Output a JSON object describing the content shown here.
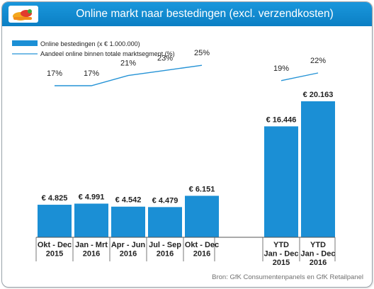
{
  "title": "Online markt naar bestedingen (excl. verzendkosten)",
  "source": "Bron: GfK Consumentenpanels en GfK Retailpanel",
  "colors": {
    "header": "#1586cf",
    "bar": "#1b8fd5",
    "line": "#2593d6",
    "text": "#222222"
  },
  "icons": {
    "logo": "shopping-basket-logo"
  },
  "chart_data": {
    "type": "bar",
    "categories": [
      [
        "Okt - Dec",
        "2015"
      ],
      [
        "Jan - Mrt",
        "2016"
      ],
      [
        "Apr - Jun",
        "2016"
      ],
      [
        "Jul - Sep",
        "2016"
      ],
      [
        "Okt - Dec",
        "2016"
      ],
      [
        "YTD",
        "Jan - Dec",
        "2015"
      ],
      [
        "YTD",
        "Jan - Dec",
        "2016"
      ]
    ],
    "groups": [
      [
        0,
        1,
        2,
        3,
        4
      ],
      [
        5,
        6
      ]
    ],
    "series": [
      {
        "name": "Online bestedingen (x € 1.000.000)",
        "type": "bar",
        "values": [
          4825,
          4991,
          4542,
          4479,
          6151,
          16446,
          20163
        ],
        "labels": [
          "€ 4.825",
          "€ 4.991",
          "€ 4.542",
          "€ 4.479",
          "€ 6.151",
          "€ 16.446",
          "€ 20.163"
        ]
      },
      {
        "name": "Aandeel online binnen totale marktsegment (%)",
        "type": "line",
        "values": [
          17,
          17,
          21,
          23,
          25,
          19,
          22
        ],
        "labels": [
          "17%",
          "17%",
          "21%",
          "23%",
          "25%",
          "19%",
          "22%"
        ]
      }
    ],
    "legend": "top-left",
    "grid": false
  }
}
